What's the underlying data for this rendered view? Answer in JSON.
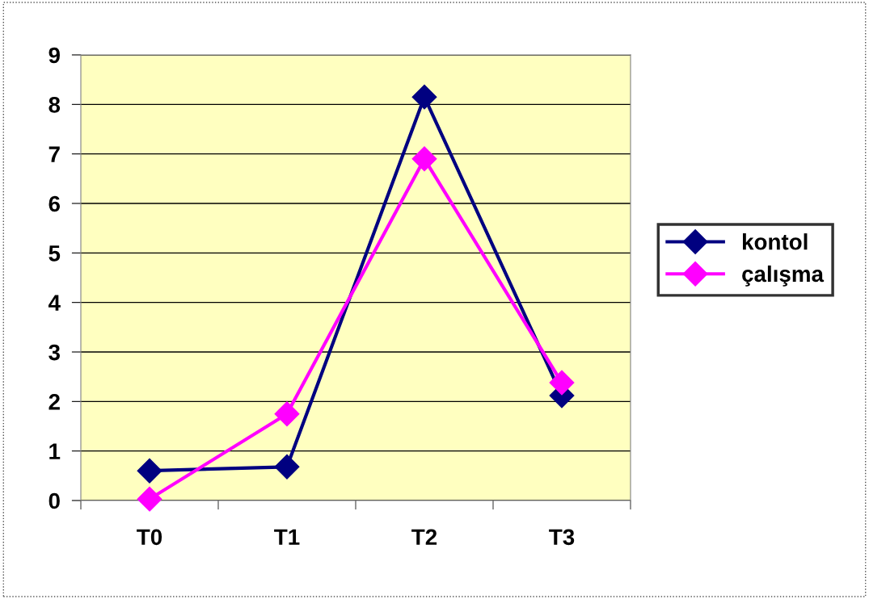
{
  "chart_data": {
    "type": "line",
    "categories": [
      "T0",
      "T1",
      "T2",
      "T3"
    ],
    "series": [
      {
        "name": "kontol",
        "color": "#000080",
        "values": [
          0.6,
          0.68,
          8.15,
          2.12
        ]
      },
      {
        "name": "çalışma",
        "color": "#ff00ff",
        "values": [
          0.03,
          1.75,
          6.9,
          2.38
        ]
      }
    ],
    "ylim": [
      0,
      9
    ],
    "yticks": [
      0,
      1,
      2,
      3,
      4,
      5,
      6,
      7,
      8,
      9
    ],
    "grid": "y",
    "legend": "right",
    "marker": "diamond",
    "line_style": "solid"
  }
}
